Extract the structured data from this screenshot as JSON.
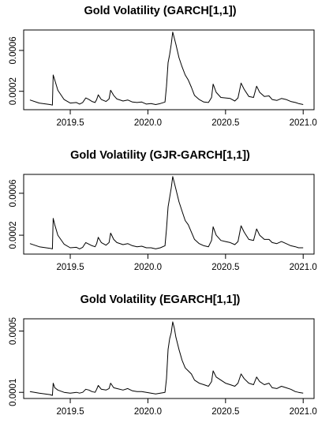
{
  "chart_data": [
    {
      "type": "line",
      "title": "Gold Volatility (GARCH[1,1])",
      "xlabel": "",
      "ylabel": "",
      "xlim": [
        2019.2,
        2021.07
      ],
      "ylim": [
        2e-05,
        0.0008
      ],
      "x_ticks": [
        2019.5,
        2020.0,
        2020.5,
        2021.0
      ],
      "x_tick_labels": [
        "2019.5",
        "2020.0",
        "2020.5",
        "2021.0"
      ],
      "y_ticks": [
        0.0002,
        0.0006
      ],
      "y_tick_labels": [
        "0.0002",
        "0.0006"
      ],
      "grid": false,
      "series": [
        {
          "x": [
            2019.24,
            2019.3,
            2019.37,
            2019.385,
            2019.39,
            2019.4,
            2019.42,
            2019.46,
            2019.5,
            2019.54,
            2019.56,
            2019.58,
            2019.6,
            2019.62,
            2019.64,
            2019.66,
            2019.67,
            2019.68,
            2019.7,
            2019.73,
            2019.75,
            2019.76,
            2019.78,
            2019.8,
            2019.84,
            2019.87,
            2019.9,
            2019.93,
            2019.96,
            2019.99,
            2020.02,
            2020.05,
            2020.08,
            2020.11,
            2020.12,
            2020.13,
            2020.14,
            2020.15,
            2020.16,
            2020.17,
            2020.18,
            2020.2,
            2020.22,
            2020.24,
            2020.26,
            2020.28,
            2020.3,
            2020.33,
            2020.36,
            2020.39,
            2020.41,
            2020.42,
            2020.44,
            2020.47,
            2020.5,
            2020.53,
            2020.56,
            2020.58,
            2020.6,
            2020.62,
            2020.65,
            2020.68,
            2020.7,
            2020.72,
            2020.75,
            2020.78,
            2020.8,
            2020.83,
            2020.86,
            2020.89,
            2020.92,
            2020.95,
            2020.97,
            2021.0
          ],
          "values": [
            0.000115,
            8.5e-05,
            7e-05,
            6.5e-05,
            0.00036,
            0.00031,
            0.00021,
            0.00012,
            8.5e-05,
            9e-05,
            7.5e-05,
            9e-05,
            0.000135,
            0.00012,
            0.0001,
            9e-05,
            0.00012,
            0.000165,
            0.00012,
            0.0001,
            0.000125,
            0.00021,
            0.00016,
            0.000125,
            0.000105,
            0.000115,
            9.5e-05,
            9e-05,
            9.5e-05,
            7.5e-05,
            8e-05,
            7e-05,
            8e-05,
            9.5e-05,
            0.00025,
            0.00048,
            0.00056,
            0.00066,
            0.00078,
            0.00072,
            0.00066,
            0.00053,
            0.00044,
            0.00036,
            0.00031,
            0.00024,
            0.00016,
            0.00012,
            9.5e-05,
            9e-05,
            0.00014,
            0.00027,
            0.00019,
            0.00014,
            0.000135,
            0.00013,
            0.000105,
            0.000135,
            0.00028,
            0.00022,
            0.00015,
            0.00014,
            0.00025,
            0.00019,
            0.00015,
            0.000155,
            0.00012,
            0.00011,
            0.00013,
            0.00012,
            0.0001,
            9e-05,
            8e-05,
            7e-05
          ]
        }
      ]
    },
    {
      "type": "line",
      "title": "Gold Volatility (GJR-GARCH[1,1])",
      "xlabel": "",
      "ylabel": "",
      "xlim": [
        2019.2,
        2021.07
      ],
      "ylim": [
        2e-05,
        0.00078
      ],
      "x_ticks": [
        2019.5,
        2020.0,
        2020.5,
        2021.0
      ],
      "x_tick_labels": [
        "2019.5",
        "2020.0",
        "2020.5",
        "2021.0"
      ],
      "y_ticks": [
        0.0002,
        0.0006
      ],
      "y_tick_labels": [
        "0.0002",
        "0.0006"
      ],
      "grid": false,
      "series": [
        {
          "x": [
            2019.24,
            2019.3,
            2019.37,
            2019.385,
            2019.39,
            2019.4,
            2019.42,
            2019.46,
            2019.5,
            2019.54,
            2019.56,
            2019.58,
            2019.6,
            2019.62,
            2019.64,
            2019.66,
            2019.67,
            2019.68,
            2019.7,
            2019.73,
            2019.75,
            2019.76,
            2019.78,
            2019.8,
            2019.84,
            2019.87,
            2019.9,
            2019.93,
            2019.96,
            2019.99,
            2020.02,
            2020.05,
            2020.08,
            2020.11,
            2020.12,
            2020.13,
            2020.14,
            2020.15,
            2020.16,
            2020.17,
            2020.18,
            2020.2,
            2020.22,
            2020.24,
            2020.26,
            2020.28,
            2020.3,
            2020.33,
            2020.36,
            2020.39,
            2020.41,
            2020.42,
            2020.44,
            2020.47,
            2020.5,
            2020.53,
            2020.56,
            2020.58,
            2020.6,
            2020.62,
            2020.65,
            2020.68,
            2020.7,
            2020.72,
            2020.75,
            2020.78,
            2020.8,
            2020.83,
            2020.86,
            2020.89,
            2020.92,
            2020.95,
            2020.97,
            2021.0
          ],
          "values": [
            0.00012,
            9e-05,
            7.5e-05,
            7e-05,
            0.00036,
            0.0003,
            0.0002,
            0.000115,
            8e-05,
            8.5e-05,
            7e-05,
            8.5e-05,
            0.00013,
            0.000115,
            0.0001,
            9e-05,
            0.00012,
            0.00018,
            0.00013,
            0.000105,
            0.00013,
            0.00022,
            0.00016,
            0.00013,
            0.00011,
            0.00012,
            0.0001,
            9e-05,
            9.5e-05,
            8e-05,
            8e-05,
            7e-05,
            8e-05,
            0.0001,
            0.00026,
            0.00047,
            0.00056,
            0.00065,
            0.00076,
            0.0007,
            0.00064,
            0.00052,
            0.00043,
            0.00034,
            0.0003,
            0.00023,
            0.00016,
            0.00012,
            0.0001,
            9e-05,
            0.00015,
            0.00028,
            0.0002,
            0.00015,
            0.00014,
            0.00013,
            0.00011,
            0.00014,
            0.00029,
            0.00023,
            0.00016,
            0.00015,
            0.00026,
            0.0002,
            0.00016,
            0.00016,
            0.00013,
            0.00012,
            0.00014,
            0.00012,
            0.0001,
            9e-05,
            8e-05,
            8e-05
          ]
        }
      ]
    },
    {
      "type": "line",
      "title": "Gold Volatility (EGARCH[1,1])",
      "xlabel": "",
      "ylabel": "",
      "xlim": [
        2019.2,
        2021.07
      ],
      "ylim": [
        6e-05,
        0.00058
      ],
      "x_ticks": [
        2019.5,
        2020.0,
        2020.5,
        2021.0
      ],
      "x_tick_labels": [
        "2019.5",
        "2020.0",
        "2020.5",
        "2021.0"
      ],
      "y_ticks": [
        0.0001,
        0.0005
      ],
      "y_tick_labels": [
        "0.0001",
        "0.0005"
      ],
      "grid": false,
      "series": [
        {
          "x": [
            2019.24,
            2019.3,
            2019.37,
            2019.385,
            2019.39,
            2019.4,
            2019.42,
            2019.46,
            2019.5,
            2019.54,
            2019.56,
            2019.58,
            2019.6,
            2019.62,
            2019.64,
            2019.66,
            2019.67,
            2019.68,
            2019.7,
            2019.73,
            2019.75,
            2019.76,
            2019.78,
            2019.8,
            2019.84,
            2019.87,
            2019.9,
            2019.93,
            2019.96,
            2019.99,
            2020.02,
            2020.05,
            2020.08,
            2020.11,
            2020.12,
            2020.13,
            2020.14,
            2020.15,
            2020.16,
            2020.17,
            2020.18,
            2020.2,
            2020.22,
            2020.24,
            2020.26,
            2020.28,
            2020.3,
            2020.33,
            2020.36,
            2020.39,
            2020.41,
            2020.42,
            2020.44,
            2020.47,
            2020.5,
            2020.53,
            2020.56,
            2020.58,
            2020.6,
            2020.62,
            2020.65,
            2020.68,
            2020.7,
            2020.72,
            2020.75,
            2020.78,
            2020.8,
            2020.83,
            2020.86,
            2020.89,
            2020.92,
            2020.95,
            2020.97,
            2021.0
          ],
          "values": [
            0.000105,
            9.5e-05,
            8.5e-05,
            8e-05,
            0.00016,
            0.00013,
            0.000115,
            0.0001,
            9.5e-05,
            0.0001,
            9.5e-05,
            0.0001,
            0.00012,
            0.000115,
            0.000105,
            0.0001,
            0.00012,
            0.000145,
            0.00012,
            0.000115,
            0.000125,
            0.00016,
            0.00013,
            0.000125,
            0.000115,
            0.000125,
            0.00011,
            0.000105,
            0.000105,
            0.0001,
            9.5e-05,
            9e-05,
            9.5e-05,
            0.0001,
            0.00019,
            0.00038,
            0.00045,
            0.00049,
            0.00056,
            0.00052,
            0.00046,
            0.00038,
            0.00031,
            0.00026,
            0.00024,
            0.00022,
            0.00018,
            0.00016,
            0.00015,
            0.00014,
            0.00017,
            0.00024,
            0.0002,
            0.00018,
            0.00016,
            0.00015,
            0.00014,
            0.00016,
            0.00022,
            0.00019,
            0.00016,
            0.00015,
            0.0002,
            0.00017,
            0.00015,
            0.00016,
            0.00013,
            0.000125,
            0.00014,
            0.00013,
            0.00012,
            0.000105,
            0.0001,
            9.5e-05
          ]
        }
      ]
    }
  ]
}
